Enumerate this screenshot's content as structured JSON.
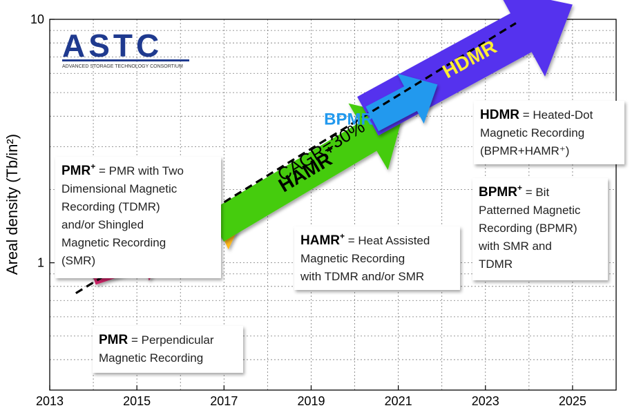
{
  "chart_data": {
    "type": "line",
    "x_axis": {
      "min": 2013,
      "max": 2026,
      "tick_labels": [
        "2013",
        "2015",
        "2017",
        "2019",
        "2021",
        "2023",
        "2025"
      ]
    },
    "y_axis": {
      "scale": "log",
      "min": 0.3,
      "max": 10,
      "title": "Areal density (Tb/in²)",
      "tick_labels": [
        "1",
        "10"
      ]
    },
    "grid": "dotted",
    "trend_line": {
      "label": "CAGR=30%",
      "x": [
        2013.6,
        2023.7
      ],
      "y": [
        0.75,
        9.65
      ]
    },
    "technologies": [
      {
        "name": "PMR",
        "color": "#cc2266",
        "label_color": "#ffee33",
        "x": [
          2014.0,
          2015.7
        ],
        "y": [
          0.87,
          1.1
        ]
      },
      {
        "name": "PMR",
        "sup": "+",
        "color": "#ffb81c",
        "label_color": "#000000",
        "x": [
          2015.3,
          2017.5
        ],
        "y": [
          1.05,
          1.6
        ]
      },
      {
        "name": "HAMR",
        "sup": "+",
        "color": "#44cc11",
        "label_color": "#000000",
        "x": [
          2016.8,
          2021.1
        ],
        "y": [
          1.4,
          4.0
        ]
      },
      {
        "name": "BPMR",
        "sup": "+",
        "color": "#2299ee",
        "label_color": "#2299ee",
        "x": [
          2020.4,
          2021.9
        ],
        "y": [
          3.9,
          5.4
        ]
      },
      {
        "name": "HDMR",
        "sup": "",
        "color": "#5533ee",
        "label_color": "#ffee33",
        "x": [
          2020.3,
          2025.0
        ],
        "y": [
          4.0,
          11.5
        ]
      }
    ],
    "annotations": [
      {
        "term": "PMR",
        "sup": "",
        "lines": [
          " = Perpendicular",
          "Magnetic Recording"
        ]
      },
      {
        "term": "PMR",
        "sup": "+",
        "lines": [
          " = PMR with Two",
          "Dimensional Magnetic",
          "Recording (TDMR)",
          "and/or Shingled",
          "Magnetic Recording",
          "(SMR)"
        ]
      },
      {
        "term": "HAMR",
        "sup": "+",
        "lines": [
          " = Heat Assisted",
          "Magnetic Recording",
          "with TDMR and/or SMR"
        ]
      },
      {
        "term": "HDMR",
        "sup": "",
        "lines": [
          " = Heated-Dot",
          "Magnetic Recording",
          "(BPMR+HAMR⁺)"
        ]
      },
      {
        "term": "BPMR",
        "sup": "+",
        "lines": [
          " = Bit",
          "Patterned Magnetic",
          "Recording (BPMR)",
          "with SMR and",
          "TDMR"
        ]
      }
    ]
  },
  "logo": {
    "name": "ASTC",
    "subtitle": "ADVANCED STORAGE TECHNOLOGY CONSORTIUM",
    "color": "#1f3a8f"
  }
}
